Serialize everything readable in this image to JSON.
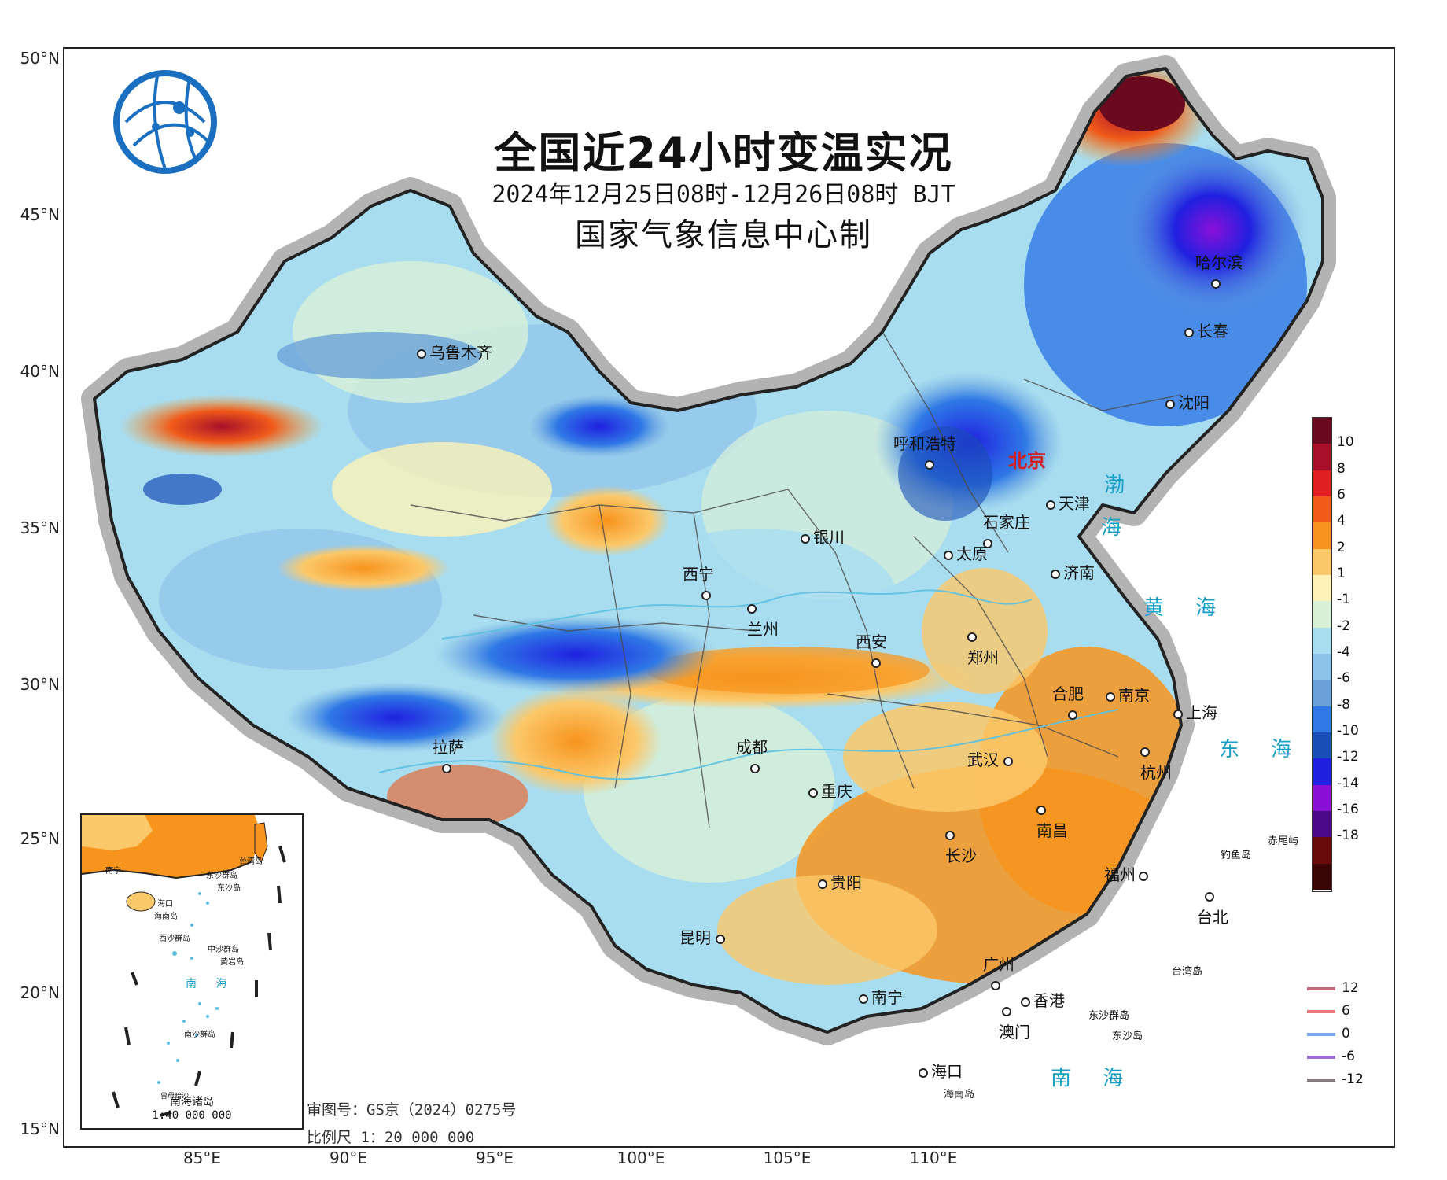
{
  "title": "全国近24小时变温实况",
  "subtitle": "2024年12月25日08时-12月26日08时 BJT",
  "maker": "国家气象信息中心制",
  "lat_labels": [
    "50°N",
    "45°N",
    "40°N",
    "35°N",
    "30°N",
    "25°N",
    "20°N",
    "15°N"
  ],
  "lon_labels": [
    "85°E",
    "90°E",
    "95°E",
    "100°E",
    "105°E",
    "110°E"
  ],
  "cities": [
    {
      "name": "哈尔滨"
    },
    {
      "name": "长春"
    },
    {
      "name": "沈阳"
    },
    {
      "name": "乌鲁木齐"
    },
    {
      "name": "呼和浩特"
    },
    {
      "name": "北京"
    },
    {
      "name": "天津"
    },
    {
      "name": "石家庄"
    },
    {
      "name": "银川"
    },
    {
      "name": "太原"
    },
    {
      "name": "济南"
    },
    {
      "name": "西宁"
    },
    {
      "name": "兰州"
    },
    {
      "name": "西安"
    },
    {
      "name": "郑州"
    },
    {
      "name": "合肥"
    },
    {
      "name": "南京"
    },
    {
      "name": "上海"
    },
    {
      "name": "拉萨"
    },
    {
      "name": "成都"
    },
    {
      "name": "武汉"
    },
    {
      "name": "杭州"
    },
    {
      "name": "重庆"
    },
    {
      "name": "南昌"
    },
    {
      "name": "长沙"
    },
    {
      "name": "贵阳"
    },
    {
      "name": "福州"
    },
    {
      "name": "台北"
    },
    {
      "name": "昆明"
    },
    {
      "name": "广州"
    },
    {
      "name": "南宁"
    },
    {
      "name": "香港"
    },
    {
      "name": "澳门"
    },
    {
      "name": "海口"
    }
  ],
  "seas": [
    {
      "name": "渤"
    },
    {
      "name": "海"
    },
    {
      "name": "黄 海"
    },
    {
      "name": "东 海"
    },
    {
      "name": "南 海"
    }
  ],
  "islands": [
    {
      "name": "钓鱼岛"
    },
    {
      "name": "赤尾屿"
    },
    {
      "name": "台湾岛"
    },
    {
      "name": "东沙群岛"
    },
    {
      "name": "东沙岛"
    },
    {
      "name": "海南岛"
    }
  ],
  "colorbar": {
    "ticks": [
      "10",
      "8",
      "6",
      "4",
      "2",
      "1",
      "-1",
      "-2",
      "-4",
      "-6",
      "-8",
      "-10",
      "-12",
      "-14",
      "-16",
      "-18"
    ],
    "colors": [
      "#6b0a1e",
      "#a8102a",
      "#e02020",
      "#f05a1a",
      "#f7941d",
      "#fbc86a",
      "#fdf3b8",
      "#d8f0d8",
      "#a8ddf0",
      "#8ec3ea",
      "#6aa2d8",
      "#2f78e6",
      "#1a4fb8",
      "#2020e0",
      "#8a10d8",
      "#4a0a88",
      "#6b0a0a",
      "#3a0505"
    ]
  },
  "isotherms": [
    {
      "label": "12",
      "color": "#c46a7a"
    },
    {
      "label": "6",
      "color": "#ea7a7a"
    },
    {
      "label": "0",
      "color": "#7aaaf0"
    },
    {
      "label": "-6",
      "color": "#a070d8"
    },
    {
      "label": "-12",
      "color": "#8a7a80"
    }
  ],
  "footer": {
    "approval": "审图号：GS京（2024）0275号",
    "scale": "比例尺 1：20 000 000"
  },
  "inset": {
    "title": "南海诸岛",
    "scale": "1:40 000 000",
    "labels": [
      "南宁",
      "台湾岛",
      "东沙群岛",
      "东沙岛",
      "海口",
      "海南岛",
      "西沙群岛",
      "中沙群岛",
      "黄岩岛",
      "南 海",
      "南沙群岛",
      "曾母暗沙"
    ]
  }
}
